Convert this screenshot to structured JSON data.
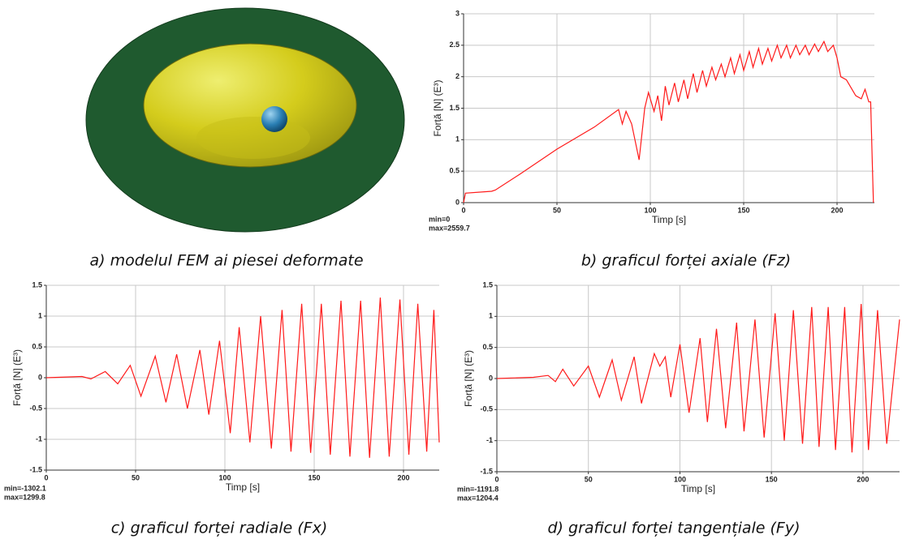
{
  "image_panel": {
    "caption": "a) modelul FEM ai piesei deformate"
  },
  "chart_data": [
    {
      "type": "line",
      "caption": "b) graficul forței axiale (Fz)",
      "x_label": "Timp [s]",
      "y_label": "Forță [N] (E³)",
      "annotations": [
        "min=0",
        "max=2559.7"
      ],
      "color": "#ff1a1a",
      "grid": true,
      "xlim": [
        0,
        220
      ],
      "ylim": [
        0,
        3
      ],
      "xticks": [
        0,
        50,
        100,
        150,
        200
      ],
      "yticks": [
        0,
        0.5,
        1,
        1.5,
        2,
        2.5,
        3
      ],
      "x": [
        0,
        1,
        15,
        17,
        30,
        50,
        70,
        83,
        85,
        87,
        90,
        94,
        97,
        99,
        102,
        104,
        106,
        108,
        110,
        113,
        115,
        118,
        120,
        123,
        125,
        128,
        130,
        133,
        135,
        138,
        140,
        143,
        145,
        148,
        150,
        153,
        155,
        158,
        160,
        163,
        165,
        168,
        170,
        173,
        175,
        178,
        180,
        183,
        185,
        188,
        190,
        193,
        195,
        198,
        200,
        202,
        205,
        208,
        210,
        213,
        215,
        217,
        218,
        219,
        219.5
      ],
      "values": [
        0,
        0.15,
        0.18,
        0.2,
        0.45,
        0.85,
        1.2,
        1.48,
        1.25,
        1.45,
        1.25,
        0.68,
        1.5,
        1.75,
        1.45,
        1.7,
        1.3,
        1.85,
        1.55,
        1.9,
        1.6,
        1.95,
        1.65,
        2.05,
        1.75,
        2.1,
        1.85,
        2.15,
        1.95,
        2.2,
        2.0,
        2.3,
        2.05,
        2.35,
        2.1,
        2.4,
        2.15,
        2.45,
        2.2,
        2.45,
        2.25,
        2.5,
        2.3,
        2.5,
        2.3,
        2.5,
        2.35,
        2.5,
        2.35,
        2.52,
        2.4,
        2.56,
        2.4,
        2.5,
        2.3,
        2.0,
        1.95,
        1.8,
        1.7,
        1.65,
        1.8,
        1.6,
        1.6,
        0.5,
        0
      ]
    },
    {
      "type": "line",
      "caption": "c) graficul forței radiale (Fx)",
      "x_label": "Timp [s]",
      "y_label": "Forță [N] (E³)",
      "annotations": [
        "min=-1302.1",
        "max=1299.8"
      ],
      "color": "#ff1a1a",
      "grid": true,
      "xlim": [
        0,
        220
      ],
      "ylim": [
        -1.5,
        1.5
      ],
      "xticks": [
        0,
        50,
        100,
        150,
        200
      ],
      "yticks": [
        -1.5,
        -1,
        -0.5,
        0,
        0.5,
        1,
        1.5
      ],
      "x": [
        0,
        20,
        25,
        33,
        40,
        47,
        53,
        61,
        67,
        73,
        79,
        86,
        91,
        97,
        103,
        108,
        114,
        120,
        126,
        132,
        137,
        143,
        148,
        154,
        159,
        165,
        170,
        176,
        181,
        187,
        192,
        198,
        203,
        208,
        213,
        217,
        220
      ],
      "values": [
        0,
        0.02,
        -0.02,
        0.1,
        -0.1,
        0.2,
        -0.3,
        0.35,
        -0.4,
        0.38,
        -0.5,
        0.45,
        -0.6,
        0.6,
        -0.9,
        0.82,
        -1.05,
        1.0,
        -1.15,
        1.1,
        -1.2,
        1.2,
        -1.22,
        1.2,
        -1.25,
        1.25,
        -1.28,
        1.25,
        -1.3,
        1.3,
        -1.28,
        1.27,
        -1.25,
        1.2,
        -1.2,
        1.1,
        -1.05
      ]
    },
    {
      "type": "line",
      "caption": "d) graficul forței tangențiale (Fy)",
      "x_label": "Timp [s]",
      "y_label": "Forță [N] (E³)",
      "annotations": [
        "min=-1191.8",
        "max=1204.4"
      ],
      "color": "#ff1a1a",
      "grid": true,
      "xlim": [
        0,
        220
      ],
      "ylim": [
        -1.5,
        1.5
      ],
      "xticks": [
        0,
        50,
        100,
        150,
        200
      ],
      "yticks": [
        -1.5,
        -1,
        -0.5,
        0,
        0.5,
        1,
        1.5
      ],
      "x": [
        0,
        20,
        28,
        32,
        36,
        42,
        50,
        56,
        63,
        68,
        75,
        79,
        86,
        89,
        92,
        95,
        100,
        105,
        111,
        115,
        120,
        125,
        131,
        135,
        141,
        146,
        152,
        157,
        162,
        167,
        172,
        176,
        181,
        185,
        190,
        194,
        199,
        203,
        208,
        213,
        220
      ],
      "values": [
        0,
        0.02,
        0.05,
        -0.05,
        0.15,
        -0.12,
        0.2,
        -0.3,
        0.3,
        -0.35,
        0.35,
        -0.4,
        0.4,
        0.2,
        0.35,
        -0.3,
        0.55,
        -0.55,
        0.65,
        -0.7,
        0.8,
        -0.8,
        0.9,
        -0.85,
        0.95,
        -0.95,
        1.05,
        -1.0,
        1.1,
        -1.05,
        1.15,
        -1.1,
        1.15,
        -1.15,
        1.15,
        -1.19,
        1.2,
        -1.15,
        1.1,
        -1.05,
        0.95
      ]
    }
  ]
}
